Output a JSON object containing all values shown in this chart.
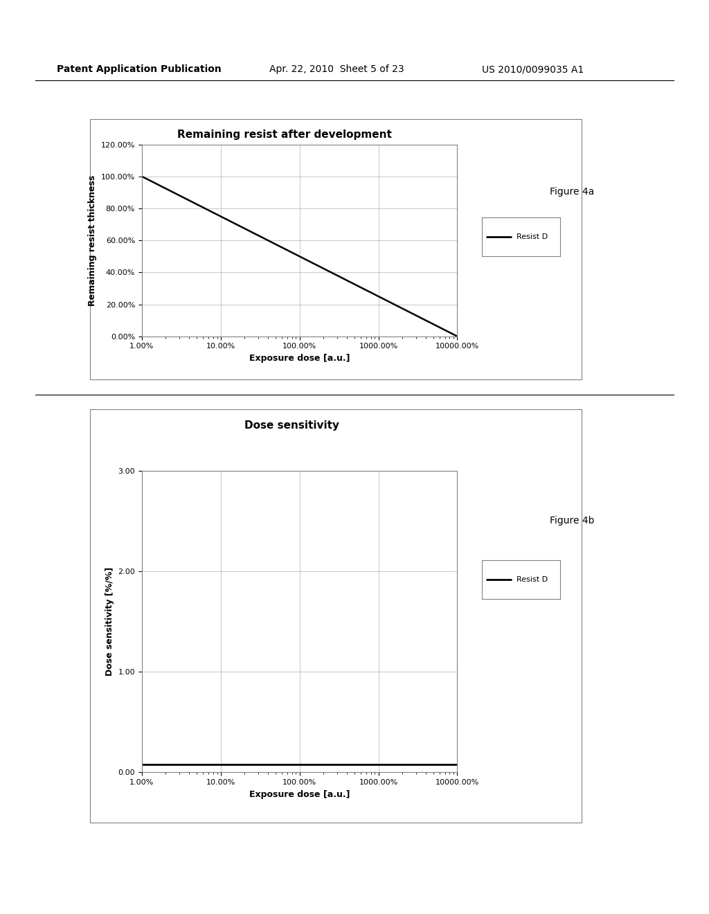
{
  "page_title_left": "Patent Application Publication",
  "page_title_center": "Apr. 22, 2010  Sheet 5 of 23",
  "page_title_right": "US 2010/0099035 A1",
  "chart1_title": "Remaining resist after development",
  "chart1_ylabel": "Remaining resist thickness",
  "chart1_xlabel": "Exposure dose [a.u.]",
  "chart1_yticks": [
    0.0,
    20.0,
    40.0,
    60.0,
    80.0,
    100.0,
    120.0
  ],
  "chart1_ytick_labels": [
    "0.00%",
    "20.00%",
    "40.00%",
    "60.00%",
    "80.00%",
    "100.00%",
    "120.00%"
  ],
  "chart1_ylim": [
    0.0,
    120.0
  ],
  "chart1_xtick_labels": [
    "1.00%",
    "10.00%",
    "100.00%",
    "1000.00%",
    "10000.00%"
  ],
  "chart1_figure_label": "Figure 4a",
  "chart1_legend_label": "Resist D",
  "chart2_title": "Dose sensitivity",
  "chart2_ylabel": "Dose sensitivity [%/%]",
  "chart2_xlabel": "Exposure dose [a.u.]",
  "chart2_yticks": [
    0.0,
    1.0,
    2.0,
    3.0
  ],
  "chart2_ytick_labels": [
    "0.00",
    "1.00",
    "2.00",
    "3.00"
  ],
  "chart2_ylim": [
    0.0,
    3.0
  ],
  "chart2_xtick_labels": [
    "1.00%",
    "10.00%",
    "100.00%",
    "1000.00%",
    "10000.00%"
  ],
  "chart2_figure_label": "Figure 4b",
  "chart2_legend_label": "Resist D",
  "line_color": "#000000",
  "grid_color": "#b0b0b0",
  "background_color": "#ffffff",
  "plot_area_color": "#ffffff",
  "border_color": "#808080",
  "dose_sensitivity_value": 0.08
}
